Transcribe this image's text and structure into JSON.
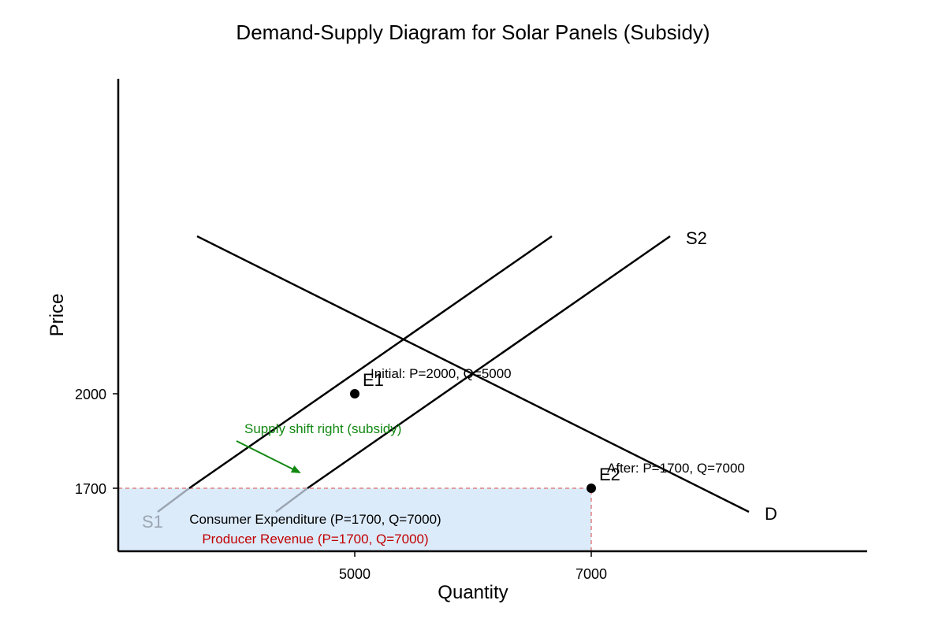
{
  "title": "Demand-Supply Diagram for Solar Panels (Subsidy)",
  "axes": {
    "x_label": "Quantity",
    "y_label": "Price",
    "x_ticks": [
      "5000",
      "7000"
    ],
    "y_ticks": [
      "2000",
      "1700"
    ]
  },
  "curves": {
    "s1_label": "S1",
    "s2_label": "S2",
    "d_label": "D"
  },
  "points": {
    "e1_label": "E1",
    "e1_note": "Initial: P=2000, Q=5000",
    "e2_label": "E2",
    "e2_note": "After: P=1700, Q=7000"
  },
  "annotations": {
    "shift_text": "Supply shift right (subsidy)",
    "consumer_expenditure": "Consumer Expenditure (P=1700, Q=7000)",
    "producer_revenue": "Producer Revenue (P=1700, Q=7000)"
  },
  "colors": {
    "line": "#000000",
    "shift_arrow": "#118811",
    "area_fill": "#dcebfa",
    "area_border": "#e08080",
    "producer_text": "#c00000",
    "faded_label": "#9aa5b1"
  }
}
